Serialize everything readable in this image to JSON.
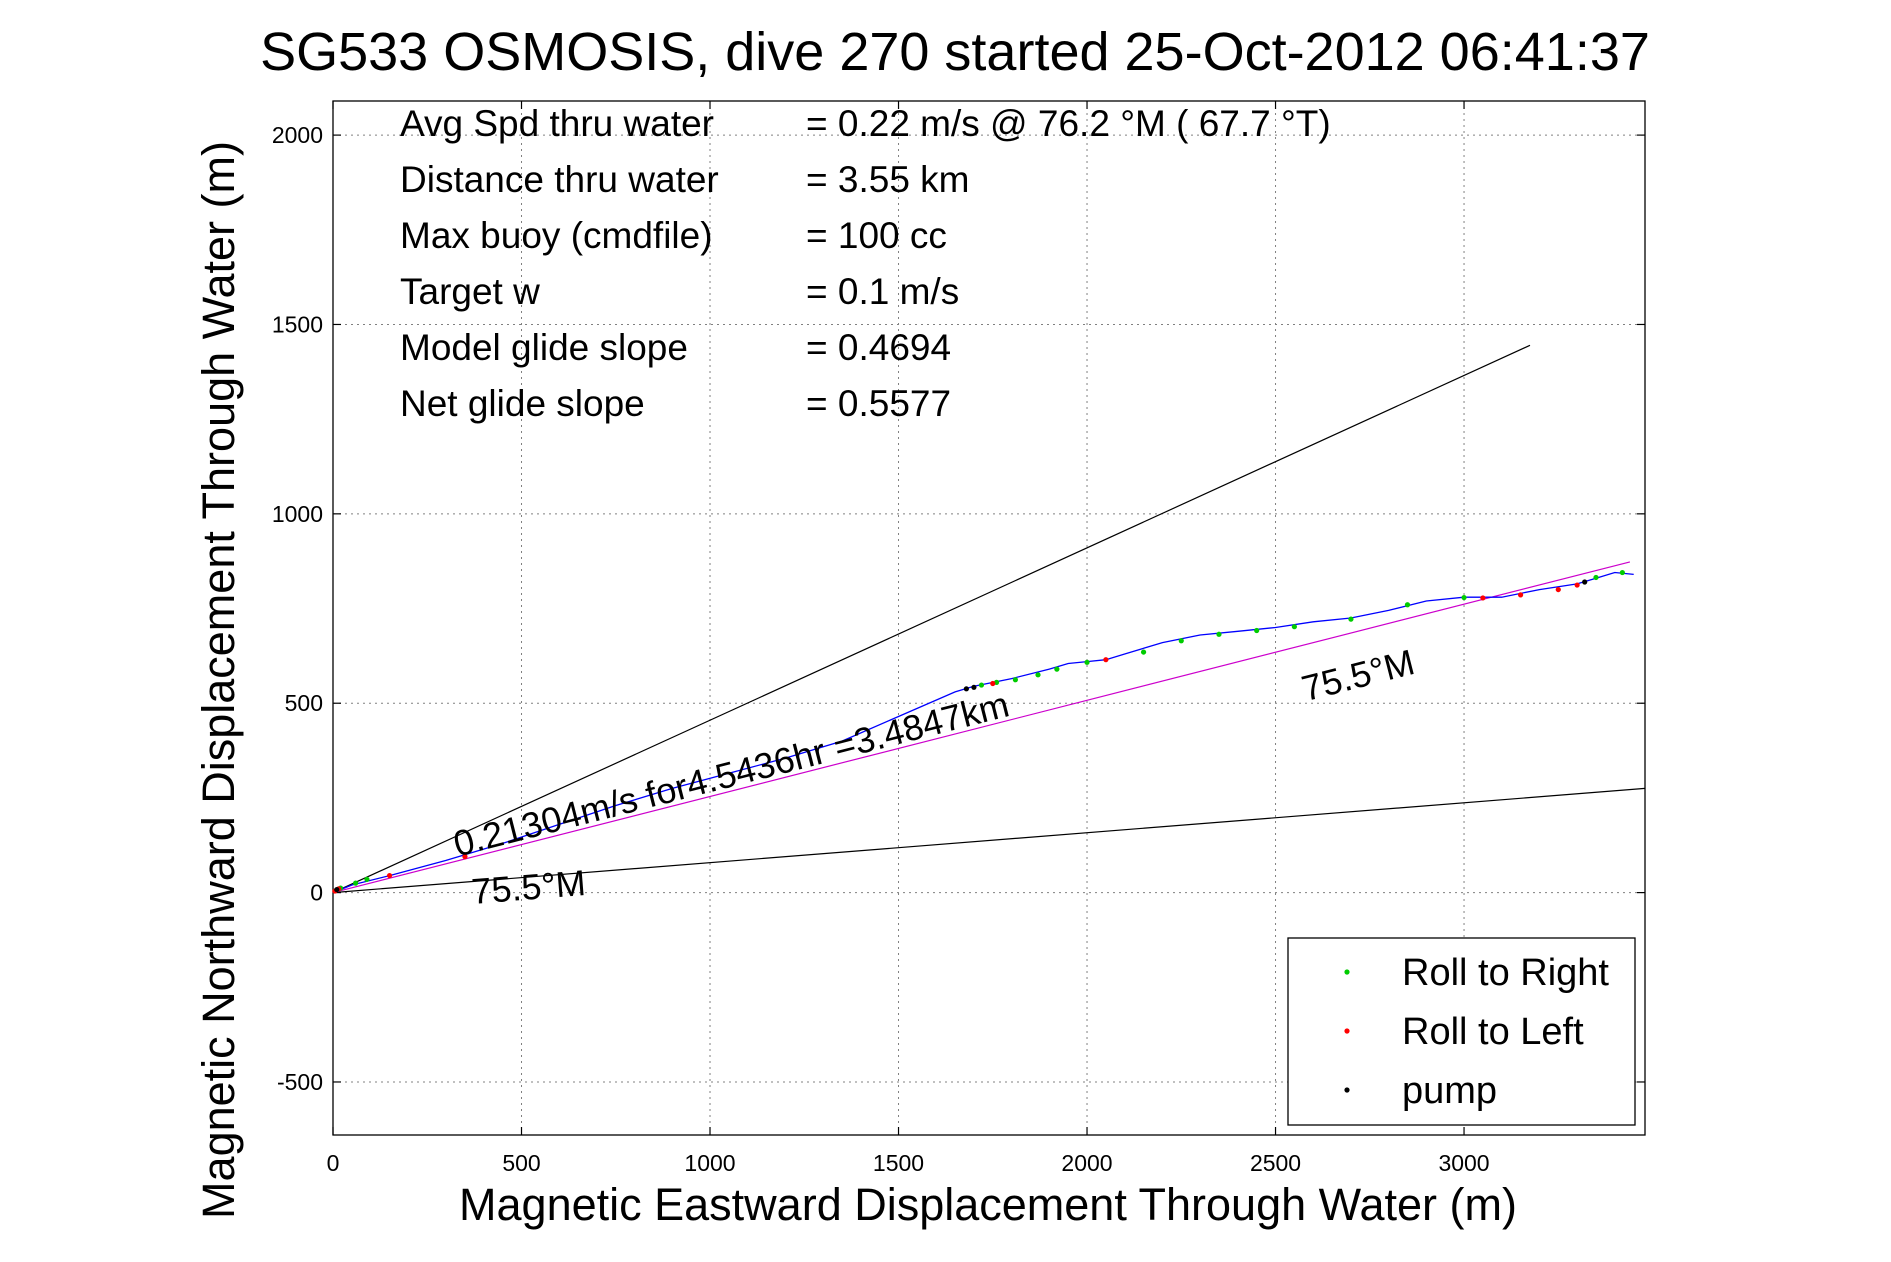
{
  "chart_data": {
    "type": "scatter",
    "title": "SG533 OSMOSIS, dive 270 started 25-Oct-2012 06:41:37",
    "xlabel": "Magnetic Eastward Displacement Through Water (m)",
    "ylabel": "Magnetic Northward Displacement Through Water (m)",
    "xlim": [
      0,
      3480
    ],
    "ylim": [
      -640,
      2090
    ],
    "xticks": [
      0,
      500,
      1000,
      1500,
      2000,
      2500,
      3000
    ],
    "yticks": [
      -500,
      0,
      500,
      1000,
      1500,
      2000
    ],
    "grid": true,
    "legend": {
      "placement": "bottom-right",
      "entries": [
        {
          "label": "Roll to Right",
          "color": "#00cc00"
        },
        {
          "label": "Roll to Left",
          "color": "#ff0000"
        },
        {
          "label": "pump",
          "color": "#000000"
        }
      ]
    },
    "stats": [
      {
        "label": "Avg Spd thru water",
        "value": "=  0.22 m/s @  76.2 °M ( 67.7 °T)"
      },
      {
        "label": "Distance thru water",
        "value": "=  3.55 km"
      },
      {
        "label": "Max buoy (cmdfile)",
        "value": "= 100 cc"
      },
      {
        "label": "Target w",
        "value": "= 0.1 m/s"
      },
      {
        "label": "Model glide slope",
        "value": "= 0.4694"
      },
      {
        "label": "Net glide slope",
        "value": "= 0.5577"
      }
    ],
    "annotations": {
      "current_label": "0.21304m/s for4.5436hr =3.4847km",
      "heading_label_upper": "75.5°M",
      "heading_label_lower": "75.5°M"
    },
    "reference_lines": [
      {
        "name": "upper-bound",
        "color": "#000000",
        "points": [
          [
            0,
            0
          ],
          [
            3175,
            1445
          ]
        ]
      },
      {
        "name": "lower-bound",
        "color": "#000000",
        "points": [
          [
            0,
            0
          ],
          [
            3480,
            275
          ]
        ]
      },
      {
        "name": "heading-line",
        "color": "#cc00cc",
        "points": [
          [
            0,
            0
          ],
          [
            3440,
            873
          ]
        ]
      }
    ],
    "series": [
      {
        "name": "track",
        "color": "#0000ff",
        "x": [
          0,
          50,
          150,
          300,
          450,
          600,
          750,
          900,
          1050,
          1200,
          1350,
          1500,
          1650,
          1700,
          1800,
          1900,
          1950,
          2000,
          2050,
          2100,
          2200,
          2300,
          2400,
          2500,
          2600,
          2700,
          2800,
          2900,
          3000,
          3100,
          3200,
          3300,
          3350,
          3400,
          3450
        ],
        "y": [
          0,
          20,
          45,
          85,
          130,
          180,
          230,
          275,
          315,
          355,
          400,
          465,
          530,
          545,
          565,
          590,
          605,
          610,
          615,
          630,
          660,
          680,
          690,
          700,
          715,
          725,
          745,
          770,
          780,
          780,
          800,
          815,
          830,
          845,
          840
        ]
      }
    ],
    "markers": {
      "roll_right": {
        "x": [
          20,
          60,
          90,
          1720,
          1760,
          1810,
          1870,
          1920,
          2000,
          2150,
          2250,
          2350,
          2450,
          2550,
          2700,
          2850,
          3000,
          3350,
          3420
        ],
        "y": [
          12,
          25,
          35,
          548,
          555,
          562,
          575,
          590,
          608,
          635,
          665,
          682,
          692,
          702,
          722,
          760,
          779,
          832,
          845
        ]
      },
      "roll_left": {
        "x": [
          5,
          15,
          150,
          350,
          1750,
          2050,
          3050,
          3150,
          3250,
          3300
        ],
        "y": [
          4,
          10,
          45,
          95,
          552,
          615,
          778,
          786,
          800,
          812
        ]
      },
      "pump": {
        "x": [
          10,
          1680,
          1700,
          3320
        ],
        "y": [
          8,
          538,
          542,
          820
        ]
      }
    }
  }
}
